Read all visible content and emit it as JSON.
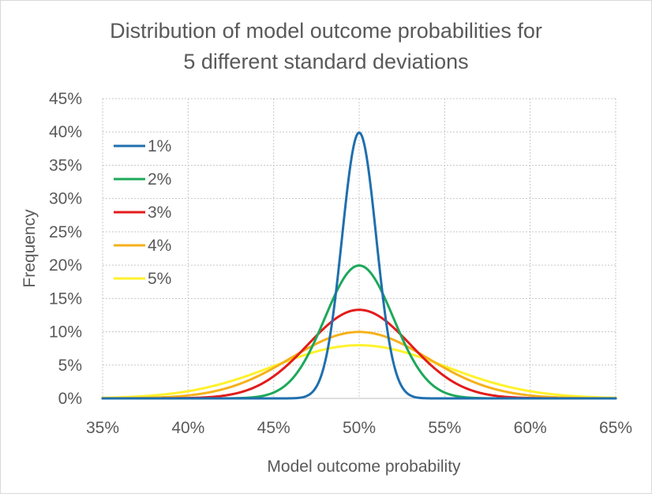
{
  "chart_data": {
    "type": "line",
    "title": [
      "Distribution of model outcome probabilities for",
      "5 different standard deviations"
    ],
    "xlabel": "Model outcome probability",
    "ylabel": "Frequency",
    "x_unit": "%",
    "y_unit": "%",
    "xlim": [
      35,
      65
    ],
    "ylim": [
      0,
      45
    ],
    "x_ticks": [
      35,
      40,
      45,
      50,
      55,
      60,
      65
    ],
    "y_ticks": [
      0,
      5,
      10,
      15,
      20,
      25,
      30,
      35,
      40,
      45
    ],
    "x_tick_labels": [
      "35%",
      "40%",
      "45%",
      "50%",
      "55%",
      "60%",
      "65%"
    ],
    "y_tick_labels": [
      "0%",
      "5%",
      "10%",
      "15%",
      "20%",
      "25%",
      "30%",
      "35%",
      "40%",
      "45%"
    ],
    "grid": {
      "major_x": true,
      "major_y": true,
      "style": "dotted"
    },
    "legend_position": "top-left",
    "distribution": "normal",
    "mean": 50,
    "series": [
      {
        "name": "1%",
        "std_dev": 1,
        "peak": 39.9,
        "color": "#1F6FAE"
      },
      {
        "name": "2%",
        "std_dev": 2,
        "peak": 19.9,
        "color": "#1DA85A"
      },
      {
        "name": "3%",
        "std_dev": 3,
        "peak": 13.3,
        "color": "#E31B1B"
      },
      {
        "name": "4%",
        "std_dev": 4,
        "peak": 9.97,
        "color": "#F5B11A"
      },
      {
        "name": "5%",
        "std_dev": 5,
        "peak": 7.98,
        "color": "#FFF22B"
      }
    ]
  },
  "colors": {
    "grid": "#c8c8c8",
    "axis": "#bfbfbf",
    "text": "#595959"
  }
}
